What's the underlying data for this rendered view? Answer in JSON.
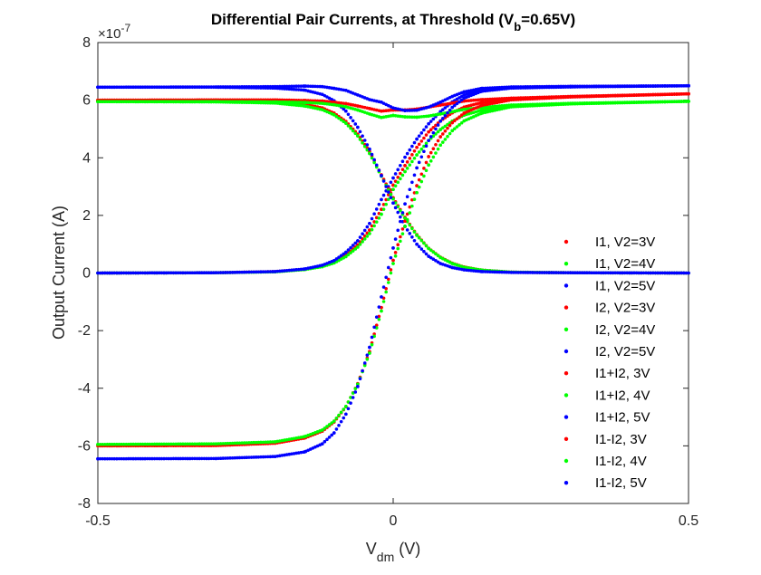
{
  "chart_data": {
    "type": "scatter",
    "title": "Differential Pair Currents, at Threshold (V",
    "title_sub": "b",
    "title_tail": "=0.65V)",
    "xlabel": "V",
    "xlabel_sub": "dm",
    "xlabel_tail": " (V)",
    "ylabel": "Output Current (A)",
    "y_exponent_label": "×10",
    "y_exponent_power": "-7",
    "xlim": [
      -0.5,
      0.5
    ],
    "ylim": [
      -8,
      8
    ],
    "y_scale": 1e-07,
    "x_ticks": [
      {
        "value": -0.5,
        "label": "-0.5"
      },
      {
        "value": 0,
        "label": "0"
      },
      {
        "value": 0.5,
        "label": "0.5"
      }
    ],
    "y_ticks": [
      {
        "value": -8,
        "label": "-8"
      },
      {
        "value": -6,
        "label": "-6"
      },
      {
        "value": -4,
        "label": "-4"
      },
      {
        "value": -2,
        "label": "-2"
      },
      {
        "value": 0,
        "label": "0"
      },
      {
        "value": 2,
        "label": "2"
      },
      {
        "value": 4,
        "label": "4"
      },
      {
        "value": 6,
        "label": "6"
      },
      {
        "value": 8,
        "label": "8"
      }
    ],
    "grid": false,
    "legend_position": "lower-right",
    "x": [
      -0.5,
      -0.3,
      -0.2,
      -0.15,
      -0.12,
      -0.1,
      -0.08,
      -0.06,
      -0.04,
      -0.02,
      0,
      0.02,
      0.04,
      0.06,
      0.08,
      0.1,
      0.12,
      0.15,
      0.2,
      0.3,
      0.5
    ],
    "series": [
      {
        "name": "I1, V2=3V",
        "color": "#ff0000",
        "values": [
          0,
          0.01,
          0.05,
          0.13,
          0.24,
          0.38,
          0.62,
          0.98,
          1.49,
          2.21,
          3.05,
          3.73,
          4.36,
          4.9,
          5.28,
          5.56,
          5.76,
          5.92,
          6.04,
          6.12,
          6.22
        ]
      },
      {
        "name": "I1, V2=4V",
        "color": "#00ff00",
        "values": [
          0,
          0.01,
          0.04,
          0.12,
          0.22,
          0.35,
          0.57,
          0.9,
          1.37,
          2.04,
          2.9,
          3.52,
          4.1,
          4.6,
          4.98,
          5.27,
          5.48,
          5.65,
          5.8,
          5.88,
          5.96
        ]
      },
      {
        "name": "I1, V2=5V",
        "color": "#0000ff",
        "values": [
          0,
          0.01,
          0.05,
          0.14,
          0.27,
          0.43,
          0.72,
          1.12,
          1.72,
          2.55,
          3.3,
          4.02,
          4.65,
          5.18,
          5.6,
          5.94,
          6.18,
          6.36,
          6.44,
          6.47,
          6.5
        ]
      },
      {
        "name": "I2, V2=3V",
        "color": "#ff0000",
        "values": [
          6.0,
          6.0,
          5.96,
          5.86,
          5.73,
          5.55,
          5.26,
          4.82,
          4.22,
          3.41,
          2.61,
          1.93,
          1.33,
          0.86,
          0.55,
          0.34,
          0.21,
          0.1,
          0.03,
          0.01,
          0
        ]
      },
      {
        "name": "I2, V2=4V",
        "color": "#00ff00",
        "values": [
          5.95,
          5.94,
          5.9,
          5.8,
          5.67,
          5.49,
          5.2,
          4.76,
          4.15,
          3.36,
          2.57,
          1.9,
          1.31,
          0.85,
          0.54,
          0.33,
          0.2,
          0.1,
          0.03,
          0.01,
          0
        ]
      },
      {
        "name": "I2, V2=5V",
        "color": "#0000ff",
        "values": [
          6.45,
          6.45,
          6.42,
          6.35,
          6.2,
          5.98,
          5.62,
          5.06,
          4.3,
          3.38,
          2.43,
          1.62,
          1.0,
          0.58,
          0.33,
          0.19,
          0.11,
          0.05,
          0.02,
          0.01,
          0
        ]
      },
      {
        "name": "I1+I2, 3V",
        "color": "#ff0000",
        "values": [
          6.0,
          6.01,
          6.01,
          5.99,
          5.97,
          5.93,
          5.88,
          5.8,
          5.71,
          5.62,
          5.66,
          5.66,
          5.69,
          5.76,
          5.83,
          5.9,
          5.97,
          6.02,
          6.07,
          6.13,
          6.22
        ]
      },
      {
        "name": "I1+I2, 4V",
        "color": "#00ff00",
        "values": [
          5.95,
          5.95,
          5.94,
          5.92,
          5.89,
          5.84,
          5.77,
          5.66,
          5.52,
          5.4,
          5.47,
          5.42,
          5.41,
          5.45,
          5.52,
          5.6,
          5.68,
          5.75,
          5.83,
          5.89,
          5.96
        ]
      },
      {
        "name": "I1+I2, 5V",
        "color": "#0000ff",
        "values": [
          6.45,
          6.46,
          6.47,
          6.49,
          6.47,
          6.41,
          6.34,
          6.18,
          6.02,
          5.93,
          5.73,
          5.64,
          5.65,
          5.76,
          5.93,
          6.13,
          6.29,
          6.41,
          6.46,
          6.48,
          6.5
        ]
      },
      {
        "name": "I1-I2, 3V",
        "color": "#ff0000",
        "values": [
          -6.0,
          -5.99,
          -5.91,
          -5.73,
          -5.49,
          -5.17,
          -4.64,
          -3.84,
          -2.73,
          -1.2,
          0.44,
          1.8,
          3.03,
          4.04,
          4.73,
          5.22,
          5.55,
          5.82,
          6.01,
          6.11,
          6.22
        ]
      },
      {
        "name": "I1-I2, 4V",
        "color": "#00ff00",
        "values": [
          -5.95,
          -5.93,
          -5.86,
          -5.68,
          -5.45,
          -5.14,
          -4.63,
          -3.86,
          -2.78,
          -1.32,
          0.33,
          1.62,
          2.79,
          3.75,
          4.44,
          4.94,
          5.28,
          5.55,
          5.77,
          5.87,
          5.96
        ]
      },
      {
        "name": "I1-I2, 5V",
        "color": "#0000ff",
        "values": [
          -6.45,
          -6.44,
          -6.37,
          -6.21,
          -5.93,
          -5.55,
          -4.9,
          -3.94,
          -2.58,
          -0.83,
          0.87,
          2.4,
          3.65,
          4.6,
          5.27,
          5.75,
          6.07,
          6.31,
          6.42,
          6.46,
          6.5
        ]
      }
    ]
  }
}
